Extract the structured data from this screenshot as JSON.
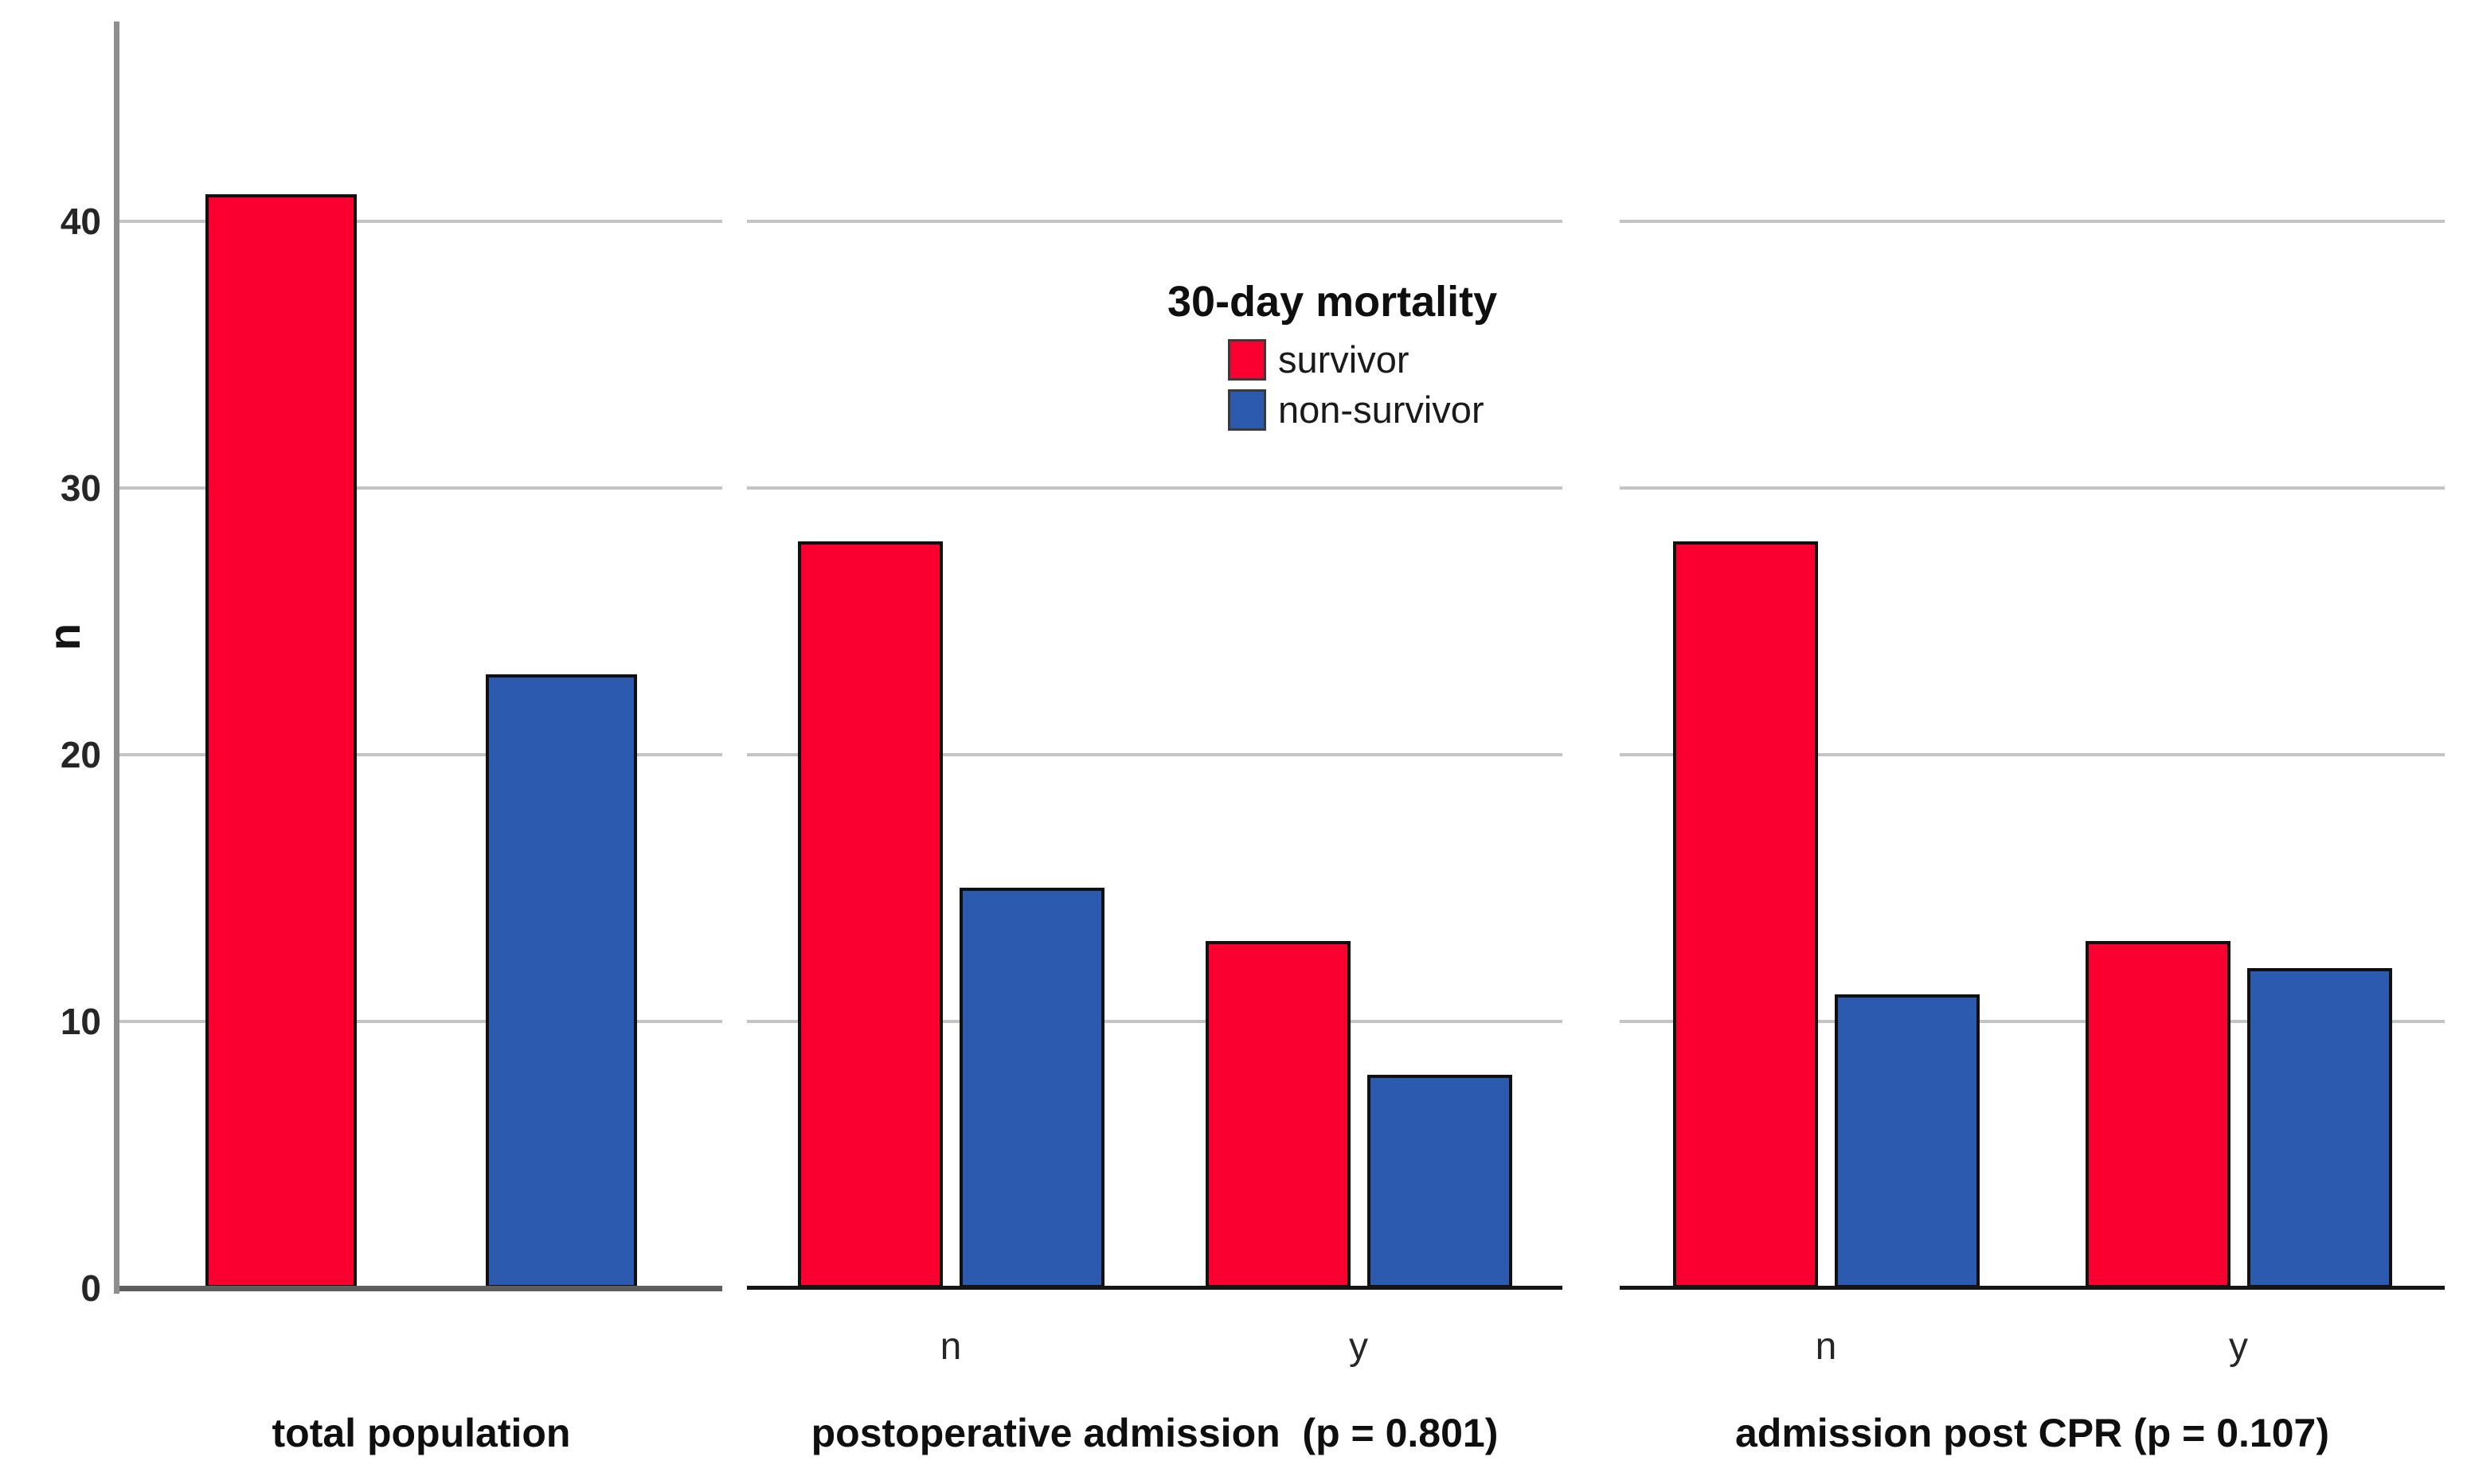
{
  "chart_data": {
    "type": "bar",
    "title": "",
    "ylabel": "n",
    "xlabel": "",
    "ylim": [
      0,
      47.5
    ],
    "yticks": [
      0,
      10,
      20,
      30,
      40
    ],
    "grid": "horizontal",
    "colors": {
      "survivor": "#f90030",
      "non_survivor": "#2c5aae",
      "gridline": "#c4c4c4",
      "axis_line": "#8e8e8e"
    },
    "legend": {
      "title": "30-day mortality",
      "position": "top-center",
      "entries": [
        {
          "label": "survivor",
          "color": "#f90030"
        },
        {
          "label": "non-survivor",
          "color": "#2c5aae"
        }
      ]
    },
    "panels": [
      {
        "title": "total population",
        "categories": [
          ""
        ],
        "series": [
          {
            "name": "survivor",
            "color": "#f90030",
            "values": [
              41
            ]
          },
          {
            "name": "non-survivor",
            "color": "#2c5aae",
            "values": [
              23
            ]
          }
        ]
      },
      {
        "title": "postoperative admission  (p = 0.801)",
        "categories": [
          "n",
          "y"
        ],
        "series": [
          {
            "name": "survivor",
            "color": "#f90030",
            "values": [
              28,
              13
            ]
          },
          {
            "name": "non-survivor",
            "color": "#2c5aae",
            "values": [
              15,
              8
            ]
          }
        ]
      },
      {
        "title": "admission post CPR (p = 0.107)",
        "categories": [
          "n",
          "y"
        ],
        "series": [
          {
            "name": "survivor",
            "color": "#f90030",
            "values": [
              28,
              13
            ]
          },
          {
            "name": "non-survivor",
            "color": "#2c5aae",
            "values": [
              11,
              12
            ]
          }
        ]
      }
    ]
  }
}
